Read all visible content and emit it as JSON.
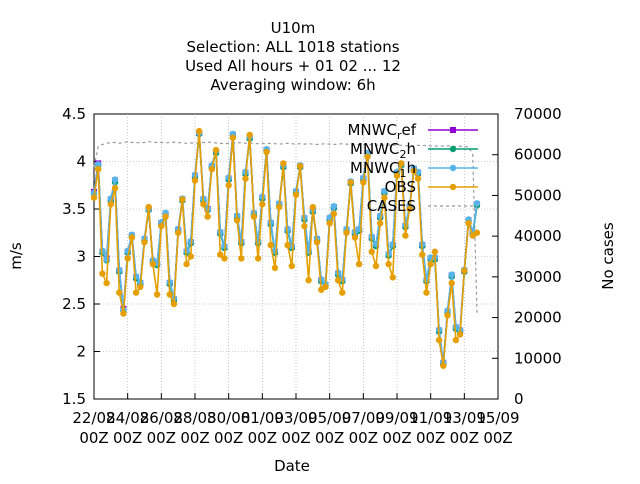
{
  "chart_data": {
    "type": "line",
    "title_lines": [
      "U10m",
      "Selection: ALL   1018 stations",
      "Used  All hours  + 01 02 ... 12",
      "Averaging window:  6h"
    ],
    "xlabel": "Date",
    "ylabel": "m/s",
    "y2label": "No cases",
    "ylim": [
      1.5,
      4.5
    ],
    "y2lim": [
      0,
      70000
    ],
    "yticks": [
      "1.5",
      "2",
      "2.5",
      "3",
      "3.5",
      "4",
      "4.5"
    ],
    "y2ticks": [
      "0",
      "10000",
      "20000",
      "30000",
      "40000",
      "50000",
      "60000",
      "70000"
    ],
    "xticks": [
      {
        "top": "22/08",
        "bottom": "00Z"
      },
      {
        "top": "24/08",
        "bottom": "00Z"
      },
      {
        "top": "26/08",
        "bottom": "00Z"
      },
      {
        "top": "28/08",
        "bottom": "00Z"
      },
      {
        "top": "30/08",
        "bottom": "00Z"
      },
      {
        "top": "01/09",
        "bottom": "00Z"
      },
      {
        "top": "03/09",
        "bottom": "00Z"
      },
      {
        "top": "05/09",
        "bottom": "00Z"
      },
      {
        "top": "07/09",
        "bottom": "00Z"
      },
      {
        "top": "09/09",
        "bottom": "00Z"
      },
      {
        "top": "11/09",
        "bottom": "00Z"
      },
      {
        "top": "13/09",
        "bottom": "00Z"
      },
      {
        "top": "15/09",
        "bottom": "00Z"
      }
    ],
    "x_start": "2023-08-22T00:00Z",
    "x_end": "2023-09-15T00:00Z",
    "grid": true,
    "legend_position": "top-right",
    "series": [
      {
        "name": "MNWC_ref",
        "color": "#9400d3",
        "marker": "square-filled",
        "axis": "y",
        "values": [
          3.68,
          3.98,
          3.05,
          2.98,
          3.6,
          3.8,
          2.85,
          2.45,
          3.05,
          3.22,
          2.78,
          2.72,
          3.18,
          3.5,
          2.95,
          2.92,
          3.35,
          3.45,
          2.72,
          2.55,
          3.28,
          3.6,
          3.05,
          3.15,
          3.85,
          4.3,
          3.6,
          3.5,
          3.95,
          4.1,
          3.25,
          3.1,
          3.82,
          4.28,
          3.42,
          3.15,
          3.88,
          4.25,
          3.45,
          3.15,
          3.62,
          4.12,
          3.35,
          3.05,
          3.55,
          3.95,
          3.28,
          3.1,
          3.68,
          3.95,
          3.4,
          3.05,
          3.48,
          3.18,
          2.75,
          2.7,
          3.4,
          3.52,
          2.82,
          2.75,
          3.28,
          3.78,
          3.25,
          3.28,
          3.82,
          4.08,
          3.2,
          3.12,
          3.42,
          3.68,
          3.02,
          3.12,
          3.88,
          3.97,
          3.32,
          3.52,
          3.92,
          3.88,
          3.12,
          2.75,
          2.98,
          2.98,
          2.22,
          1.88,
          2.42,
          2.8,
          2.25,
          2.22,
          2.85,
          3.38,
          3.25,
          3.55
        ]
      },
      {
        "name": "MNWC_2h",
        "color": "#009e73",
        "marker": "circle-filled",
        "axis": "y",
        "values": [
          3.66,
          3.96,
          3.04,
          2.96,
          3.58,
          3.78,
          2.84,
          2.43,
          3.04,
          3.21,
          2.77,
          2.71,
          3.17,
          3.49,
          2.94,
          2.91,
          3.34,
          3.44,
          2.71,
          2.54,
          3.27,
          3.59,
          3.04,
          3.14,
          3.84,
          4.29,
          3.59,
          3.49,
          3.94,
          4.09,
          3.24,
          3.09,
          3.81,
          4.27,
          3.41,
          3.14,
          3.87,
          4.24,
          3.44,
          3.14,
          3.61,
          4.11,
          3.34,
          3.04,
          3.54,
          3.94,
          3.27,
          3.09,
          3.67,
          3.94,
          3.39,
          3.04,
          3.47,
          3.17,
          2.74,
          2.69,
          3.39,
          3.51,
          2.81,
          2.74,
          3.27,
          3.77,
          3.24,
          3.27,
          3.81,
          4.07,
          3.19,
          3.11,
          3.41,
          3.67,
          3.01,
          3.11,
          3.87,
          3.96,
          3.31,
          3.51,
          3.91,
          3.87,
          3.11,
          2.74,
          2.97,
          2.97,
          2.21,
          1.87,
          2.41,
          2.79,
          2.24,
          2.21,
          2.84,
          3.37,
          3.24,
          3.54
        ]
      },
      {
        "name": "MNWC_1h",
        "color": "#56b4e9",
        "marker": "circle-filled",
        "axis": "y",
        "values": [
          3.67,
          3.97,
          3.06,
          2.97,
          3.61,
          3.81,
          2.86,
          2.44,
          3.06,
          3.23,
          2.79,
          2.73,
          3.19,
          3.5,
          2.96,
          2.93,
          3.36,
          3.46,
          2.73,
          2.56,
          3.29,
          3.61,
          3.06,
          3.16,
          3.86,
          4.3,
          3.61,
          3.5,
          3.96,
          4.11,
          3.26,
          3.11,
          3.83,
          4.29,
          3.43,
          3.16,
          3.89,
          4.26,
          3.46,
          3.16,
          3.63,
          4.13,
          3.36,
          3.06,
          3.56,
          3.96,
          3.29,
          3.11,
          3.69,
          3.96,
          3.41,
          3.06,
          3.49,
          3.19,
          2.76,
          2.71,
          3.41,
          3.53,
          2.83,
          2.76,
          3.29,
          3.79,
          3.26,
          3.29,
          3.83,
          4.09,
          3.21,
          3.13,
          3.43,
          3.69,
          3.03,
          3.13,
          3.89,
          3.98,
          3.33,
          3.53,
          3.93,
          3.89,
          3.13,
          2.76,
          2.99,
          2.99,
          2.23,
          1.89,
          2.43,
          2.81,
          2.26,
          2.23,
          2.86,
          3.39,
          3.26,
          3.56
        ]
      },
      {
        "name": "OBS",
        "color": "#e69f00",
        "marker": "circle-filled",
        "axis": "y",
        "values": [
          3.62,
          3.92,
          2.82,
          2.72,
          3.55,
          3.72,
          2.62,
          2.4,
          2.98,
          3.2,
          2.62,
          2.68,
          3.15,
          3.52,
          2.92,
          2.6,
          3.32,
          3.42,
          2.6,
          2.5,
          3.25,
          3.6,
          2.92,
          3.0,
          3.8,
          4.32,
          3.55,
          3.42,
          3.92,
          4.12,
          3.02,
          2.98,
          3.75,
          4.25,
          3.38,
          2.98,
          3.82,
          4.28,
          3.42,
          2.98,
          3.55,
          4.1,
          3.12,
          2.88,
          3.52,
          3.98,
          3.12,
          2.9,
          3.65,
          3.95,
          3.32,
          2.75,
          3.52,
          3.15,
          2.65,
          2.68,
          3.35,
          3.45,
          2.75,
          2.62,
          3.25,
          3.78,
          3.2,
          2.92,
          3.78,
          4.05,
          3.05,
          2.9,
          3.35,
          3.62,
          2.92,
          2.78,
          3.85,
          3.98,
          3.22,
          3.5,
          3.9,
          3.82,
          3.02,
          2.62,
          2.92,
          3.05,
          2.12,
          1.85,
          2.38,
          2.72,
          2.12,
          2.18,
          2.85,
          3.35,
          3.22,
          3.25
        ]
      },
      {
        "name": "CASES",
        "color": "#999999",
        "marker": "none",
        "dash": true,
        "axis": "y2",
        "values": [
          57000,
          62000,
          62500,
          62800,
          63000,
          63000,
          62800,
          63000,
          63200,
          63000,
          63000,
          62900,
          63000,
          63200,
          63100,
          63000,
          63000,
          62900,
          63000,
          63100,
          63000,
          62900,
          62800,
          62900,
          62800,
          62900,
          63000,
          63100,
          63000,
          62900,
          62800,
          62700,
          62800,
          62900,
          62900,
          63000,
          62800,
          62900,
          62800,
          62700,
          62800,
          62700,
          62800,
          62700,
          62600,
          62700,
          62800,
          62700,
          62600,
          62700,
          62600,
          62700,
          62600,
          62500,
          62600,
          62700,
          62600,
          62500,
          62600,
          62700,
          62600,
          62500,
          62400,
          62500,
          62400,
          62500,
          62400,
          62300,
          62400,
          62300,
          62400,
          62300,
          62400,
          62300,
          62200,
          62300,
          62200,
          62300,
          62200,
          62300,
          62200,
          62100,
          62200,
          62100,
          62200,
          62100,
          62000,
          62100,
          62000,
          62000,
          60000,
          21000
        ]
      }
    ],
    "legend_labels": [
      {
        "base": "MNWC",
        "sub": "r",
        "rest": "ef"
      },
      {
        "base": "MNWC",
        "sub": "2",
        "rest": "h"
      },
      {
        "base": "MNWC",
        "sub": "1",
        "rest": "h"
      },
      {
        "base": "OBS",
        "sub": "",
        "rest": ""
      },
      {
        "base": "CASES",
        "sub": "",
        "rest": ""
      }
    ]
  }
}
